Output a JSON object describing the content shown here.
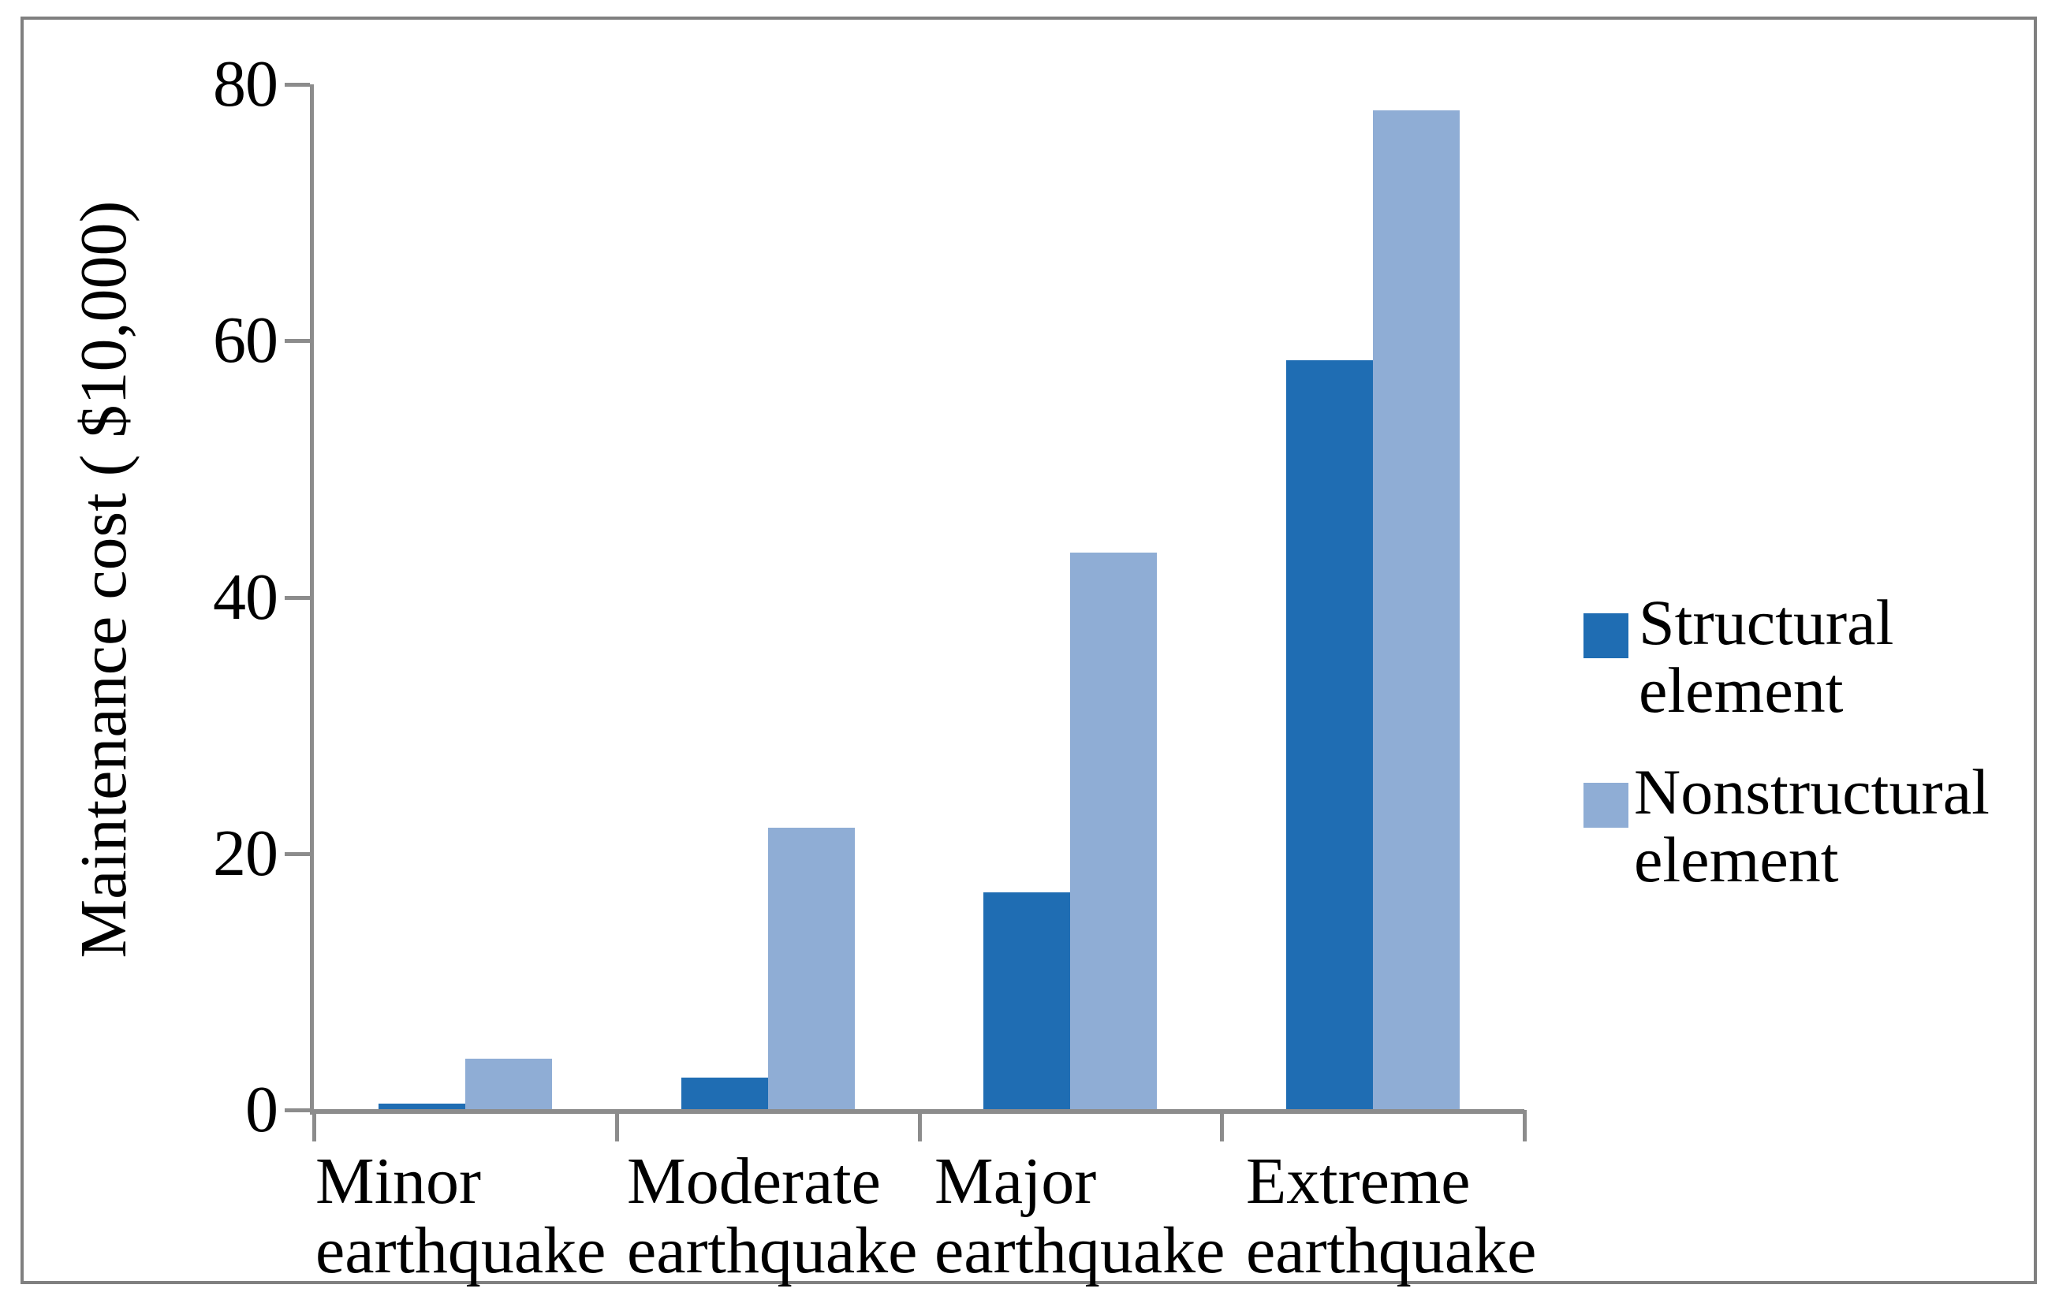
{
  "figure": {
    "border_color": "#808080",
    "background": "#ffffff"
  },
  "y_axis": {
    "title": "Maintenance cost ( $10,000)",
    "axis_color": "#8C8C8C"
  },
  "legend": {
    "items": [
      {
        "line1": "Structural",
        "line2": "element",
        "color": "#1F6DB3"
      },
      {
        "line1": "Nonstructural",
        "line2": "element",
        "color": "#8FADD5"
      }
    ]
  },
  "categories_lines": [
    {
      "line1": "Minor",
      "line2": "earthquake"
    },
    {
      "line1": "Moderate",
      "line2": "earthquake"
    },
    {
      "line1": "Major",
      "line2": "earthquake"
    },
    {
      "line1": "Extreme",
      "line2": "earthquake"
    }
  ],
  "chart_data": {
    "type": "bar",
    "title": "",
    "xlabel": "",
    "ylabel": "Maintenance cost ( $10,000)",
    "categories": [
      "Minor earthquake",
      "Moderate earthquake",
      "Major earthquake",
      "Extreme earthquake"
    ],
    "series": [
      {
        "name": "Structural element",
        "color": "#1F6DB3",
        "values": [
          0.5,
          2.5,
          17,
          58.5
        ]
      },
      {
        "name": "Nonstructural element",
        "color": "#8FADD5",
        "values": [
          4,
          22,
          43.5,
          78
        ]
      }
    ],
    "ylim": [
      0,
      80
    ],
    "yticks": [
      0,
      20,
      40,
      60,
      80
    ],
    "grid": false,
    "legend_position": "right"
  }
}
